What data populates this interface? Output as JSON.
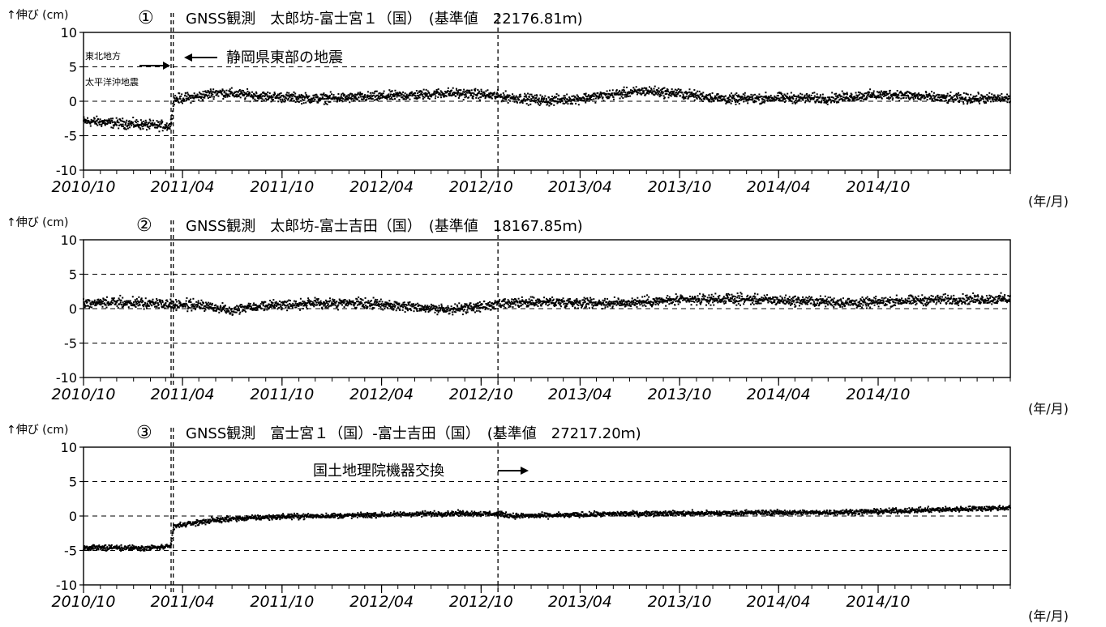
{
  "colors": {
    "ink": "#000000",
    "background": "#ffffff"
  },
  "month_unit": "(年/月)",
  "y_unit": "↑伸び (cm)",
  "x_tick_labels": [
    "2010/10",
    "2011/04",
    "2011/10",
    "2012/04",
    "2012/10",
    "2013/04",
    "2013/10",
    "2014/04",
    "2014/10"
  ],
  "y_tick_labels": [
    "10",
    "5",
    "0",
    "-5",
    "-10"
  ],
  "annotations": {
    "tohoku_line1": "東北地方",
    "tohoku_line2": "太平洋沖地震",
    "shizuoka": "静岡県東部の地震",
    "equipment": "国土地理院機器交換"
  },
  "chart_data": [
    {
      "type": "scatter",
      "title": "GNSS観測　太郎坊-富士宮１（国）　(基準値　22176.81ｍ)",
      "number": "①",
      "ylabel": "↑伸び (cm)",
      "xlabel": "(年/月)",
      "ylim": [
        -10,
        10
      ],
      "xlim": [
        "2010-10-01",
        "2015-06-01"
      ],
      "grid": "dashed horizontal at ±5 and 0",
      "events": [
        "2011-03-11",
        "2011-03-15",
        "2012-11-01"
      ],
      "series": [
        {
          "x": [
            "2010-10-01",
            "2010-11-01",
            "2010-12-01",
            "2011-01-01",
            "2011-02-01",
            "2011-03-10",
            "2011-03-16",
            "2011-05-01",
            "2011-06-01",
            "2011-07-01",
            "2011-08-01",
            "2011-09-01",
            "2011-10-01",
            "2011-12-01",
            "2012-02-01",
            "2012-04-01",
            "2012-06-01",
            "2012-08-01",
            "2012-10-01",
            "2012-12-01",
            "2013-02-01",
            "2013-04-01",
            "2013-06-01",
            "2013-08-01",
            "2013-10-01",
            "2014-01-01",
            "2014-04-01",
            "2014-07-01",
            "2014-09-01",
            "2014-11-01",
            "2015-02-01",
            "2015-06-01"
          ],
          "y": [
            -2.9,
            -3.0,
            -3.2,
            -3.3,
            -3.5,
            -3.6,
            0.3,
            0.7,
            1.3,
            1.1,
            0.9,
            0.7,
            0.6,
            0.4,
            0.5,
            0.7,
            0.9,
            1.2,
            1.0,
            0.5,
            0.1,
            0.4,
            1.0,
            1.5,
            1.1,
            0.3,
            0.5,
            0.4,
            0.8,
            1.0,
            0.4,
            0.4
          ]
        }
      ]
    },
    {
      "type": "scatter",
      "title": "GNSS観測　太郎坊-富士吉田（国）　(基準値　18167.85ｍ)",
      "number": "②",
      "ylabel": "↑伸び (cm)",
      "xlabel": "(年/月)",
      "ylim": [
        -10,
        10
      ],
      "xlim": [
        "2010-10-01",
        "2015-06-01"
      ],
      "grid": "dashed horizontal at ±5 and 0",
      "events": [
        "2011-03-11",
        "2011-03-15",
        "2012-11-01"
      ],
      "series": [
        {
          "x": [
            "2010-10-01",
            "2010-12-01",
            "2011-02-01",
            "2011-03-10",
            "2011-03-16",
            "2011-05-01",
            "2011-06-01",
            "2011-07-01",
            "2011-08-01",
            "2011-10-01",
            "2011-12-01",
            "2012-02-01",
            "2012-04-01",
            "2012-06-01",
            "2012-08-01",
            "2012-10-01",
            "2012-12-01",
            "2013-02-01",
            "2013-04-01",
            "2013-06-01",
            "2013-08-01",
            "2013-10-01",
            "2014-01-01",
            "2014-04-01",
            "2014-07-01",
            "2014-09-01",
            "2014-11-01",
            "2015-02-01",
            "2015-06-01"
          ],
          "y": [
            0.8,
            0.9,
            0.8,
            0.6,
            0.6,
            0.5,
            0.1,
            -0.2,
            0.3,
            0.6,
            0.7,
            0.8,
            0.6,
            0.3,
            -0.2,
            0.3,
            0.8,
            1.0,
            0.9,
            0.8,
            1.0,
            1.2,
            1.4,
            1.2,
            1.0,
            0.8,
            1.1,
            1.3,
            1.4
          ]
        }
      ]
    },
    {
      "type": "scatter",
      "title": "GNSS観測　富士宮１（国）-富士吉田（国）　(基準値　27217.20ｍ)",
      "number": "③",
      "ylabel": "↑伸び (cm)",
      "xlabel": "(年/月)",
      "ylim": [
        -10,
        10
      ],
      "xlim": [
        "2010-10-01",
        "2015-06-01"
      ],
      "grid": "dashed horizontal at ±5 and 0",
      "events": [
        "2011-03-11",
        "2011-03-15",
        "2012-11-01"
      ],
      "series": [
        {
          "x": [
            "2010-10-01",
            "2010-12-01",
            "2011-02-01",
            "2011-03-10",
            "2011-03-16",
            "2011-04-01",
            "2011-05-01",
            "2011-06-01",
            "2011-07-01",
            "2011-08-01",
            "2011-10-01",
            "2011-12-01",
            "2012-03-01",
            "2012-06-01",
            "2012-09-01",
            "2012-11-01",
            "2012-12-01",
            "2013-03-01",
            "2013-06-01",
            "2013-09-01",
            "2013-12-01",
            "2014-03-01",
            "2014-06-01",
            "2014-09-01",
            "2014-12-01",
            "2015-03-01",
            "2015-06-01"
          ],
          "y": [
            -4.6,
            -4.6,
            -4.6,
            -4.5,
            -1.5,
            -1.3,
            -0.9,
            -0.6,
            -0.4,
            -0.3,
            -0.1,
            0.0,
            0.1,
            0.3,
            0.4,
            0.3,
            0.0,
            0.1,
            0.3,
            0.4,
            0.4,
            0.5,
            0.5,
            0.6,
            0.8,
            1.0,
            1.2
          ]
        }
      ]
    }
  ]
}
